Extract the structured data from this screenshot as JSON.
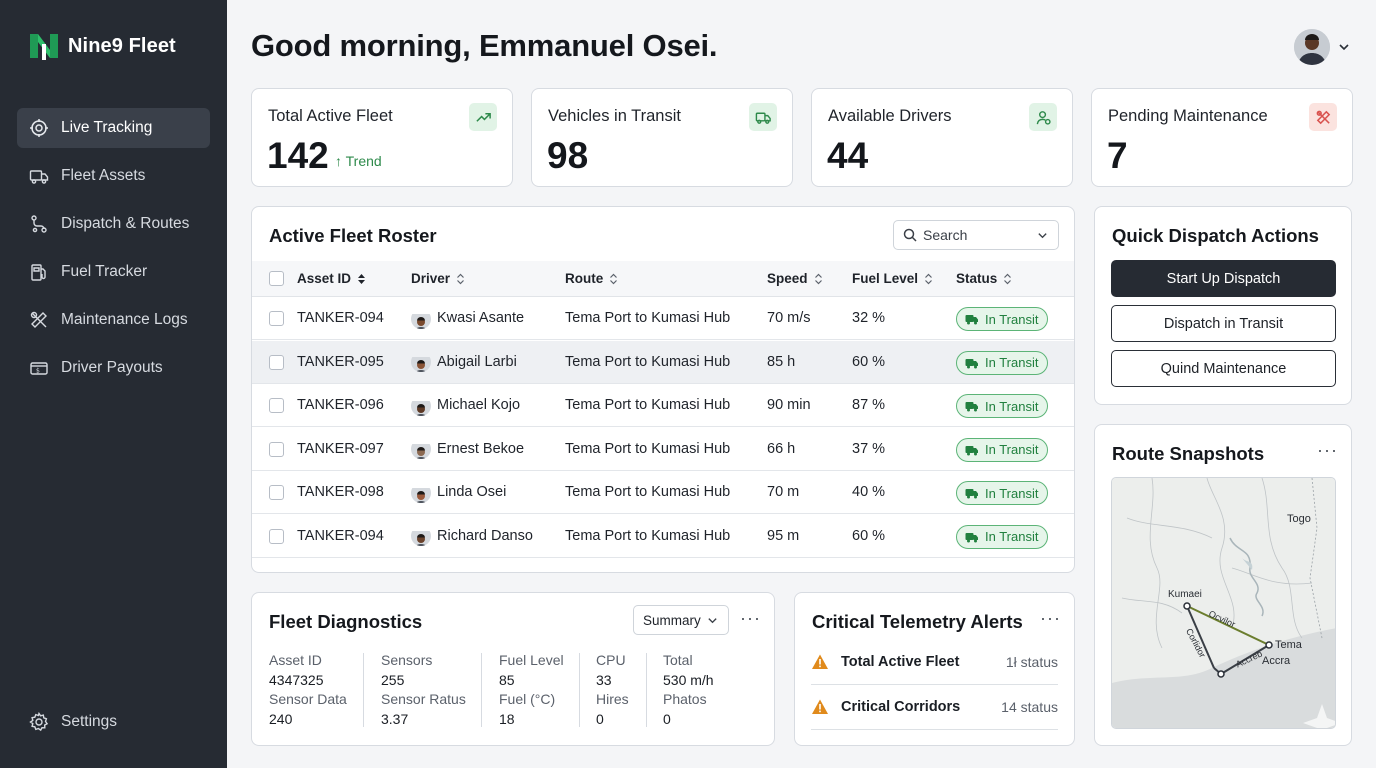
{
  "brand": {
    "name": "Nine9 Fleet"
  },
  "nav": {
    "items": [
      {
        "label": "Live Tracking",
        "icon": "live-tracking-icon",
        "active": true
      },
      {
        "label": "Fleet Assets",
        "icon": "truck-icon"
      },
      {
        "label": "Dispatch & Routes",
        "icon": "route-icon"
      },
      {
        "label": "Fuel Tracker",
        "icon": "fuel-icon"
      },
      {
        "label": "Maintenance Logs",
        "icon": "tools-icon"
      },
      {
        "label": "Driver Payouts",
        "icon": "payout-icon"
      }
    ],
    "settings_label": "Settings"
  },
  "header": {
    "greeting": "Good morning, Emmanuel Osei."
  },
  "stats": [
    {
      "title": "Total Active Fleet",
      "value": "142",
      "trend": "↑ Trend",
      "icon": "trend-up-icon"
    },
    {
      "title": "Vehicles in Transit",
      "value": "98",
      "icon": "truck-icon"
    },
    {
      "title": "Available Drivers",
      "value": "44",
      "icon": "driver-icon"
    },
    {
      "title": "Pending Maintenance",
      "value": "7",
      "icon": "tools-icon"
    }
  ],
  "roster": {
    "title": "Active Fleet Roster",
    "search_placeholder": "Search",
    "columns": [
      "Asset ID",
      "Driver",
      "Route",
      "Speed",
      "Fuel Level",
      "Status"
    ],
    "rows": [
      {
        "asset": "TANKER-094",
        "driver": "Kwasi Asante",
        "route": "Tema Port to Kumasi Hub",
        "speed": "70 m/s",
        "fuel": "32 %",
        "status": "In Transit",
        "skin": "#7a4a2e"
      },
      {
        "asset": "TANKER-095",
        "driver": "Abigail Larbi",
        "route": "Tema Port to Kumasi Hub",
        "speed": "85 h",
        "fuel": "60 %",
        "status": "In Transit",
        "skin": "#8a5436"
      },
      {
        "asset": "TANKER-096",
        "driver": "Michael Kojo",
        "route": "Tema Port to Kumasi Hub",
        "speed": "90 min",
        "fuel": "87 %",
        "status": "In Transit",
        "skin": "#5e3a26"
      },
      {
        "asset": "TANKER-097",
        "driver": "Ernest Bekoe",
        "route": "Tema Port to Kumasi Hub",
        "speed": "66 h",
        "fuel": "37 %",
        "status": "In Transit",
        "skin": "#8c6a52"
      },
      {
        "asset": "TANKER-098",
        "driver": "Linda Osei",
        "route": "Tema Port to Kumasi Hub",
        "speed": "70 m",
        "fuel": "40 %",
        "status": "In Transit",
        "skin": "#9a5a3c"
      },
      {
        "asset": "TANKER-094",
        "driver": "Richard Danso",
        "route": "Tema Port to Kumasi Hub",
        "speed": "95 m",
        "fuel": "60 %",
        "status": "In Transit",
        "skin": "#6b432c"
      }
    ]
  },
  "quick_dispatch": {
    "title": "Quick Dispatch Actions",
    "buttons": [
      "Start Up Dispatch",
      "Dispatch in Transit",
      "Quind Maintenance"
    ]
  },
  "route_snapshots": {
    "title": "Route Snapshots",
    "labels": {
      "togo": "Togo",
      "kumasi": "Kumaei",
      "tema": "Tema",
      "accra": "Accra",
      "corridor_a": "Ocvilor",
      "corridor_b": "Corlidor",
      "corridor_c": "Accreb"
    }
  },
  "diagnostics": {
    "title": "Fleet Diagnostics",
    "dropdown": "Summary",
    "cols": [
      {
        "k1": "Asset ID",
        "v1": "4347325",
        "k2": "Sensor Data",
        "v2": "240"
      },
      {
        "k1": "Sensors",
        "v1": "255",
        "k2": "Sensor Ratus",
        "v2": "3.37"
      },
      {
        "k1": "Fuel Level",
        "v1": "85",
        "k2": "Fuel (°C)",
        "v2": "18"
      },
      {
        "k1": "CPU",
        "v1": "33",
        "k2": "Hires",
        "v2": "0"
      },
      {
        "k1": "Total",
        "v1": "530 m/h",
        "k2": "Phatos",
        "v2": "0"
      }
    ]
  },
  "alerts": {
    "title": "Critical Telemetry Alerts",
    "items": [
      {
        "label": "Total Active Fleet",
        "status": "1ł status"
      },
      {
        "label": "Critical Corridors",
        "status": "14 status"
      }
    ]
  },
  "colors": {
    "sidebar": "#262b33",
    "accent_green": "#2e8a4b",
    "alert_orange": "#e08a1c",
    "danger_red": "#d9534f"
  }
}
